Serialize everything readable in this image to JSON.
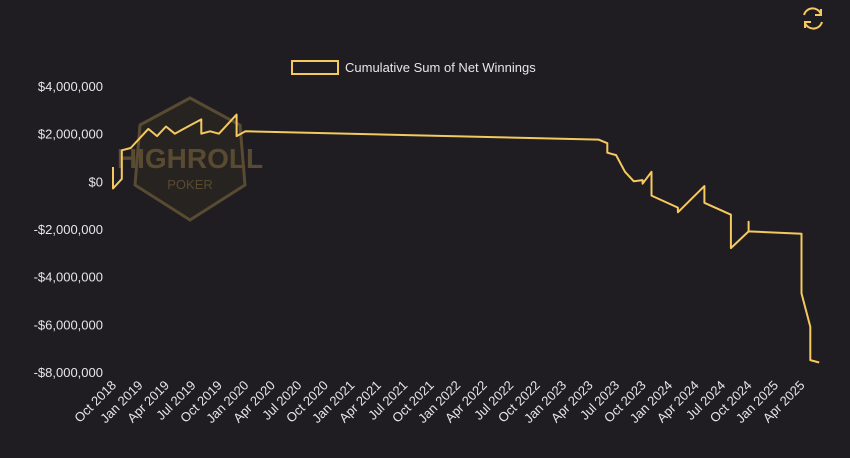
{
  "chart_data": {
    "type": "line",
    "logo": {
      "line1": "HIGHROLL",
      "line2": "POKER"
    },
    "series": [
      {
        "name": "Cumulative Sum of Net Winnings",
        "color": "#f5c860",
        "x": [
          "2018-10",
          "2018-10",
          "2018-11",
          "2018-11",
          "2018-12",
          "2019-01",
          "2019-02",
          "2019-03",
          "2019-04",
          "2019-05",
          "2019-06",
          "2019-07",
          "2019-08",
          "2019-08",
          "2019-09",
          "2019-10",
          "2019-11",
          "2019-12",
          "2019-12",
          "2020-01",
          "2023-05",
          "2023-06",
          "2023-06",
          "2023-06",
          "2023-07",
          "2023-08",
          "2023-09",
          "2023-10",
          "2023-10",
          "2023-11",
          "2023-11",
          "2024-02",
          "2024-02",
          "2024-05",
          "2024-05",
          "2024-08",
          "2024-08",
          "2024-10",
          "2024-10",
          "2024-10",
          "2025-04",
          "2025-04",
          "2025-05",
          "2025-05",
          "2025-06"
        ],
        "values": [
          600000,
          -300000,
          100000,
          1300000,
          1400000,
          1800000,
          2200000,
          1900000,
          2300000,
          2000000,
          2200000,
          2400000,
          2600000,
          2000000,
          2100000,
          2000000,
          2400000,
          2800000,
          1900000,
          2100000,
          1750000,
          1600000,
          1400000,
          1200000,
          1100000,
          400000,
          0,
          50000,
          -100000,
          400000,
          -600000,
          -1100000,
          -1300000,
          -200000,
          -900000,
          -1400000,
          -2800000,
          -2100000,
          -1700000,
          -2100000,
          -2200000,
          -4700000,
          -6100000,
          -7500000,
          -7600000
        ]
      }
    ],
    "xlim": [
      "2018-10",
      "2025-07"
    ],
    "xticks": [
      {
        "value": "2018-10",
        "label": "Oct 2018"
      },
      {
        "value": "2019-01",
        "label": "Jan 2019"
      },
      {
        "value": "2019-04",
        "label": "Apr 2019"
      },
      {
        "value": "2019-07",
        "label": "Jul 2019"
      },
      {
        "value": "2019-10",
        "label": "Oct 2019"
      },
      {
        "value": "2020-01",
        "label": "Jan 2020"
      },
      {
        "value": "2020-04",
        "label": "Apr 2020"
      },
      {
        "value": "2020-07",
        "label": "Jul 2020"
      },
      {
        "value": "2020-10",
        "label": "Oct 2020"
      },
      {
        "value": "2021-01",
        "label": "Jan 2021"
      },
      {
        "value": "2021-04",
        "label": "Apr 2021"
      },
      {
        "value": "2021-07",
        "label": "Jul 2021"
      },
      {
        "value": "2021-10",
        "label": "Oct 2021"
      },
      {
        "value": "2022-01",
        "label": "Jan 2022"
      },
      {
        "value": "2022-04",
        "label": "Apr 2022"
      },
      {
        "value": "2022-07",
        "label": "Jul 2022"
      },
      {
        "value": "2022-10",
        "label": "Oct 2022"
      },
      {
        "value": "2023-01",
        "label": "Jan 2023"
      },
      {
        "value": "2023-04",
        "label": "Apr 2023"
      },
      {
        "value": "2023-07",
        "label": "Jul 2023"
      },
      {
        "value": "2023-10",
        "label": "Oct 2023"
      },
      {
        "value": "2024-01",
        "label": "Jan 2024"
      },
      {
        "value": "2024-04",
        "label": "Apr 2024"
      },
      {
        "value": "2024-07",
        "label": "Jul 2024"
      },
      {
        "value": "2024-10",
        "label": "Oct 2024"
      },
      {
        "value": "2025-01",
        "label": "Jan 2025"
      },
      {
        "value": "2025-04",
        "label": "Apr 2025"
      }
    ],
    "ylim": [
      -8000000,
      4000000
    ],
    "yticks": [
      {
        "value": 4000000,
        "label": "$4,000,000"
      },
      {
        "value": 2000000,
        "label": "$2,000,000"
      },
      {
        "value": 0,
        "label": "$0"
      },
      {
        "value": -2000000,
        "label": "-$2,000,000"
      },
      {
        "value": -4000000,
        "label": "-$4,000,000"
      },
      {
        "value": -6000000,
        "label": "-$6,000,000"
      },
      {
        "value": -8000000,
        "label": "-$8,000,000"
      }
    ],
    "legend": "top"
  }
}
